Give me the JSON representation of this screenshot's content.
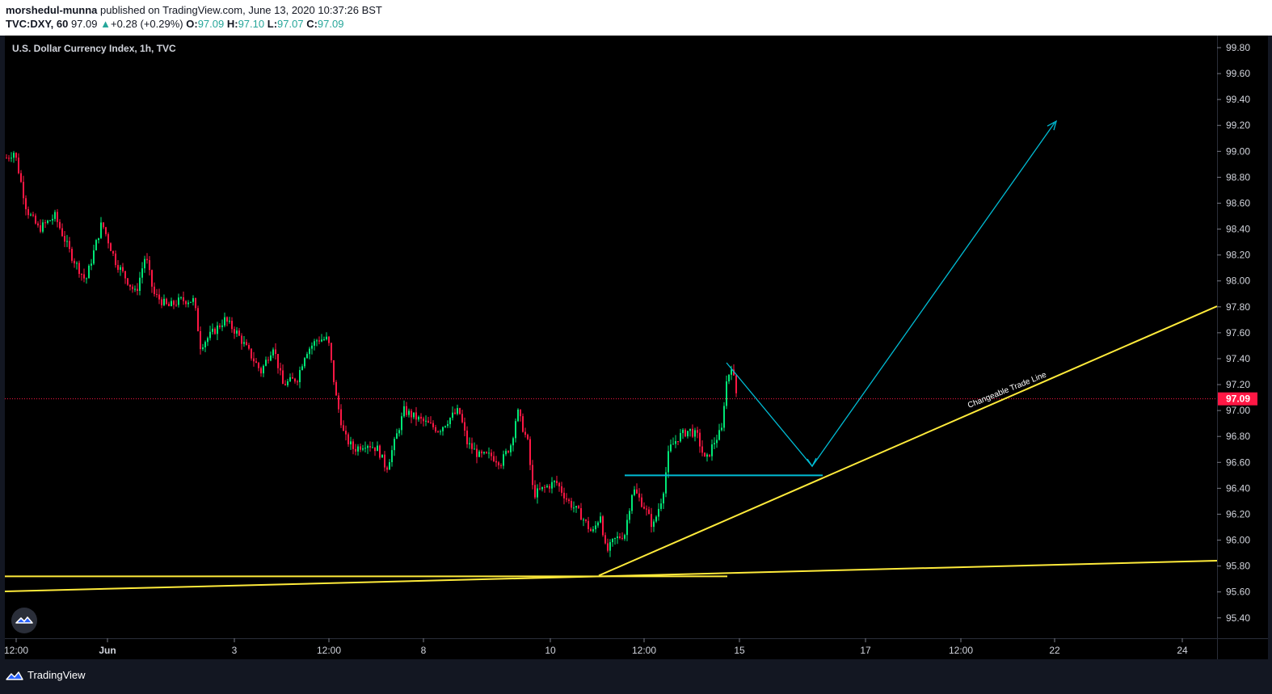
{
  "header": {
    "line1_author": "morshedul-munna",
    "line1_rest": " published on TradingView.com, June 13, 2020 10:37:26 BST",
    "symbol": "TVC:DXY, 60",
    "last": "97.09",
    "change": "+0.28 (+0.29%)",
    "o_label": "O:",
    "o_val": "97.09",
    "h_label": "H:",
    "h_val": "97.10",
    "l_label": "L:",
    "l_val": "97.07",
    "c_label": "C:",
    "c_val": "97.09"
  },
  "chart_data": {
    "type": "candlestick",
    "title": "U.S. Dollar Currency Index, 1h, TVC",
    "y_ticks": [
      "99.80",
      "99.60",
      "99.40",
      "99.20",
      "99.00",
      "98.80",
      "98.60",
      "98.40",
      "98.20",
      "98.00",
      "97.80",
      "97.60",
      "97.40",
      "97.20",
      "97.00",
      "96.80",
      "96.60",
      "96.40",
      "96.20",
      "96.00",
      "95.80",
      "95.60",
      "95.40"
    ],
    "ylim": [
      95.23,
      99.92
    ],
    "x_ticks": [
      "12:00",
      "Jun",
      "3",
      "12:00",
      "8",
      "12:00",
      "10",
      "12:00",
      "15",
      "17",
      "12:00",
      "22",
      "24"
    ],
    "current_price": 97.09,
    "current_price_label": "97.09",
    "price_path": [
      [
        0,
        98.95
      ],
      [
        10,
        99.0
      ],
      [
        25,
        98.55
      ],
      [
        40,
        98.4
      ],
      [
        60,
        98.5
      ],
      [
        80,
        98.2
      ],
      [
        98,
        98.0
      ],
      [
        118,
        98.45
      ],
      [
        135,
        98.15
      ],
      [
        150,
        98.0
      ],
      [
        160,
        97.9
      ],
      [
        172,
        98.2
      ],
      [
        182,
        97.9
      ],
      [
        200,
        97.8
      ],
      [
        215,
        97.85
      ],
      [
        232,
        97.85
      ],
      [
        240,
        97.5
      ],
      [
        255,
        97.6
      ],
      [
        270,
        97.7
      ],
      [
        285,
        97.6
      ],
      [
        300,
        97.45
      ],
      [
        315,
        97.3
      ],
      [
        330,
        97.5
      ],
      [
        342,
        97.2
      ],
      [
        360,
        97.25
      ],
      [
        370,
        97.45
      ],
      [
        385,
        97.55
      ],
      [
        398,
        97.55
      ],
      [
        408,
        97.1
      ],
      [
        418,
        96.8
      ],
      [
        430,
        96.7
      ],
      [
        445,
        96.75
      ],
      [
        460,
        96.7
      ],
      [
        470,
        96.55
      ],
      [
        480,
        96.75
      ],
      [
        492,
        97.0
      ],
      [
        505,
        96.95
      ],
      [
        520,
        96.9
      ],
      [
        535,
        96.85
      ],
      [
        550,
        96.95
      ],
      [
        560,
        97.0
      ],
      [
        570,
        96.75
      ],
      [
        585,
        96.65
      ],
      [
        600,
        96.65
      ],
      [
        612,
        96.6
      ],
      [
        625,
        96.75
      ],
      [
        632,
        97.0
      ],
      [
        645,
        96.75
      ],
      [
        652,
        96.35
      ],
      [
        665,
        96.4
      ],
      [
        680,
        96.45
      ],
      [
        695,
        96.3
      ],
      [
        710,
        96.2
      ],
      [
        725,
        96.05
      ],
      [
        735,
        96.2
      ],
      [
        742,
        95.9
      ],
      [
        752,
        96.0
      ],
      [
        765,
        96.05
      ],
      [
        775,
        96.4
      ],
      [
        790,
        96.25
      ],
      [
        800,
        96.1
      ],
      [
        812,
        96.35
      ],
      [
        820,
        96.7
      ],
      [
        832,
        96.8
      ],
      [
        845,
        96.85
      ],
      [
        855,
        96.8
      ],
      [
        865,
        96.6
      ],
      [
        875,
        96.75
      ],
      [
        885,
        96.85
      ],
      [
        890,
        97.2
      ],
      [
        897,
        97.35
      ],
      [
        904,
        97.1
      ]
    ],
    "drawings": {
      "support_low": 95.72,
      "support_level_cyan": 96.5,
      "projection_target": 99.22,
      "projection_pullback": 96.57,
      "trendline_label": "Changeable Trade Line"
    }
  },
  "footer": {
    "brand": "TradingView"
  }
}
